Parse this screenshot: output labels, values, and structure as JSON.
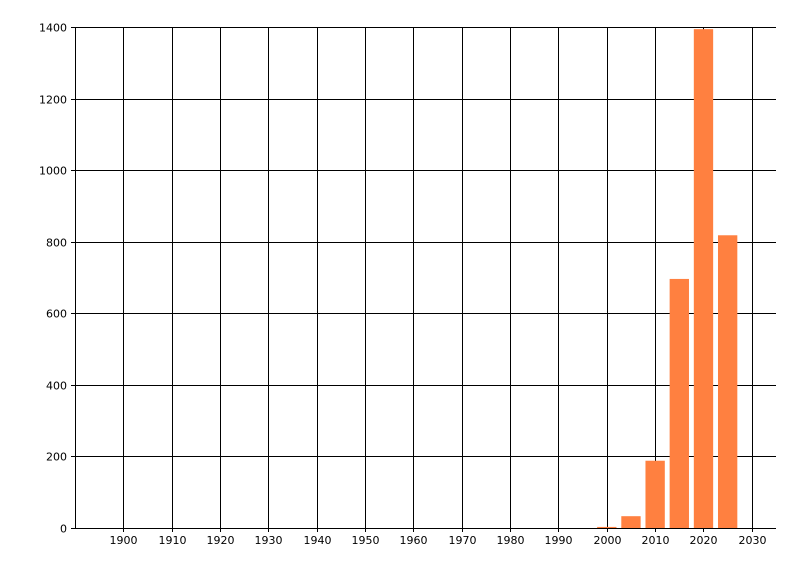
{
  "chart_data": {
    "type": "bar",
    "title": "",
    "xlabel": "",
    "ylabel": "",
    "x": [
      2000,
      2005,
      2010,
      2015,
      2020,
      2025
    ],
    "values": [
      3,
      33,
      188,
      696,
      1394,
      818
    ],
    "bar_width_years": 4,
    "xlim": [
      1890,
      2035
    ],
    "ylim": [
      0,
      1400
    ],
    "x_ticks": [
      1900,
      1910,
      1920,
      1930,
      1940,
      1950,
      1960,
      1970,
      1980,
      1990,
      2000,
      2010,
      2020,
      2030
    ],
    "y_ticks": [
      0,
      200,
      400,
      600,
      800,
      1000,
      1200,
      1400
    ],
    "grid": true,
    "legend": "none",
    "bar_color": "#FF8040",
    "grid_color": "#000000"
  }
}
